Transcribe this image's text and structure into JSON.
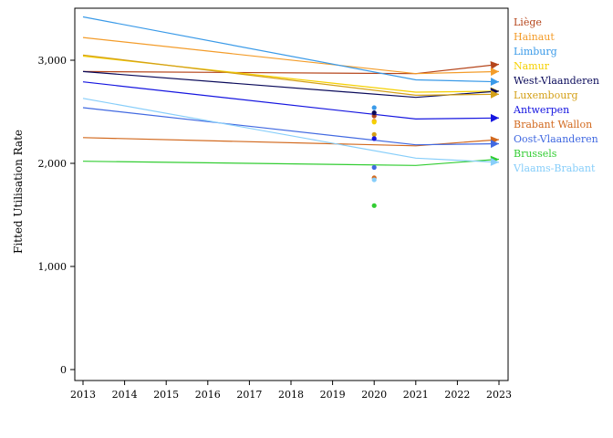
{
  "chart_data": {
    "type": "line",
    "title": "",
    "xlabel": "",
    "ylabel": "Fitted Utilisation Rate",
    "x": [
      2013,
      2021,
      2023
    ],
    "x_ticks": [
      2013,
      2014,
      2015,
      2016,
      2017,
      2018,
      2019,
      2020,
      2021,
      2022,
      2023
    ],
    "y_ticks": [
      0,
      1000,
      2000,
      3000
    ],
    "y_tick_labels": [
      "0",
      "1,000",
      "2,000",
      "3,000"
    ],
    "xlim": [
      2013,
      2023
    ],
    "ylim": [
      0,
      3500
    ],
    "grid": false,
    "legend_placement": "right",
    "series": [
      {
        "name": "Liège",
        "color": "#b5451b",
        "values": [
          2890,
          2870,
          2960
        ],
        "marker_2020": 2460
      },
      {
        "name": "Hainaut",
        "color": "#f39c2a",
        "values": [
          3220,
          2870,
          2890
        ],
        "marker_2020": 2410
      },
      {
        "name": "Limburg",
        "color": "#3a9ae8",
        "values": [
          3420,
          2810,
          2790
        ],
        "marker_2020": 2540
      },
      {
        "name": "Namur",
        "color": "#f5d000",
        "values": [
          3040,
          2690,
          2700
        ],
        "marker_2020": 2400
      },
      {
        "name": "West-Vlaanderen",
        "color": "#0a0a5a",
        "values": [
          2890,
          2640,
          2700
        ],
        "marker_2020": 2490
      },
      {
        "name": "Luxembourg",
        "color": "#d4a017",
        "values": [
          3050,
          2660,
          2670
        ],
        "marker_2020": 2280
      },
      {
        "name": "Antwerpen",
        "color": "#1515e0",
        "values": [
          2790,
          2430,
          2440
        ],
        "marker_2020": 2240
      },
      {
        "name": "Brabant Wallon",
        "color": "#d2691e",
        "values": [
          2250,
          2170,
          2230
        ],
        "marker_2020": 1860
      },
      {
        "name": "Oost-Vlaanderen",
        "color": "#4169e1",
        "values": [
          2540,
          2180,
          2190
        ],
        "marker_2020": 1960
      },
      {
        "name": "Brussels",
        "color": "#32cd32",
        "values": [
          2020,
          1980,
          2040
        ],
        "marker_2020": 1590
      },
      {
        "name": "Vlaams-Brabant",
        "color": "#87cefa",
        "values": [
          2630,
          2050,
          2010
        ],
        "marker_2020": 1840
      }
    ]
  }
}
